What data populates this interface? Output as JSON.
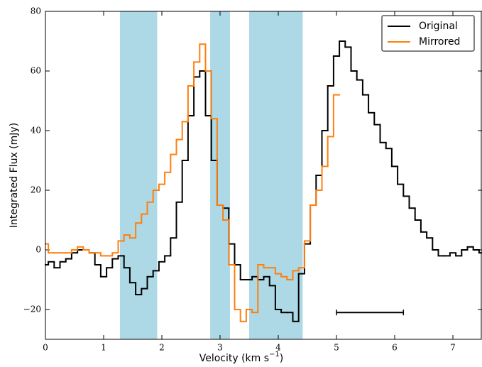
{
  "chart_data": {
    "type": "step",
    "xlabel": {
      "text": "Velocity (km s",
      "sup": "−1",
      "tail": ")"
    },
    "ylabel": "Integrated Flux (mJy)",
    "xlim": [
      0,
      7.5
    ],
    "ylim": [
      -30,
      80
    ],
    "xticks": [
      0,
      1,
      2,
      3,
      4,
      5,
      6,
      7
    ],
    "yticks": [
      {
        "value": -20,
        "label": "−20"
      },
      0,
      20,
      40,
      60,
      80
    ],
    "legend": "upper right",
    "shaded_bands": {
      "color": "#add8e6",
      "ranges": [
        [
          1.28,
          1.92
        ],
        [
          2.83,
          3.17
        ],
        [
          3.5,
          4.42
        ]
      ]
    },
    "resolution_bar": {
      "x": [
        5.0,
        6.15
      ],
      "y": -21,
      "color": "#000000"
    },
    "series": [
      {
        "name": "Original",
        "color": "#000000",
        "x": [
          0,
          0.1,
          0.2,
          0.3,
          0.4,
          0.5,
          0.6,
          0.7,
          0.8,
          0.9,
          1.0,
          1.1,
          1.2,
          1.3,
          1.4,
          1.5,
          1.6,
          1.7,
          1.8,
          1.9,
          2.0,
          2.1,
          2.2,
          2.3,
          2.4,
          2.5,
          2.6,
          2.7,
          2.8,
          2.9,
          3.0,
          3.1,
          3.2,
          3.3,
          3.4,
          3.5,
          3.6,
          3.7,
          3.8,
          3.9,
          4.0,
          4.1,
          4.2,
          4.3,
          4.4,
          4.5,
          4.6,
          4.7,
          4.8,
          4.9,
          5.0,
          5.1,
          5.2,
          5.3,
          5.4,
          5.5,
          5.6,
          5.7,
          5.8,
          5.9,
          6.0,
          6.1,
          6.2,
          6.3,
          6.4,
          6.5,
          6.6,
          6.7,
          6.8,
          6.9,
          7.0,
          7.1,
          7.2,
          7.3,
          7.4,
          7.5
        ],
        "values": [
          -5,
          -4,
          -6,
          -4,
          -3,
          -1,
          0,
          0,
          -1,
          -5,
          -9,
          -6,
          -3,
          -2,
          -6,
          -11,
          -15,
          -13,
          -9,
          -7,
          -4,
          -2,
          4,
          16,
          30,
          45,
          58,
          60,
          45,
          30,
          15,
          14,
          2,
          -5,
          -10,
          -10,
          -9,
          -10,
          -9,
          -12,
          -20,
          -21,
          -21,
          -24,
          -8,
          2,
          15,
          25,
          40,
          55,
          65,
          70,
          68,
          60,
          57,
          52,
          46,
          42,
          36,
          34,
          28,
          22,
          18,
          14,
          10,
          6,
          4,
          0,
          -2,
          -2,
          -1,
          -2,
          0,
          1,
          0,
          -1
        ]
      },
      {
        "name": "Mirrored",
        "color": "#ff7f0e",
        "x": [
          0,
          0.1,
          0.2,
          0.3,
          0.4,
          0.5,
          0.6,
          0.7,
          0.8,
          0.9,
          1.0,
          1.1,
          1.2,
          1.3,
          1.4,
          1.5,
          1.6,
          1.7,
          1.8,
          1.9,
          2.0,
          2.1,
          2.2,
          2.3,
          2.4,
          2.5,
          2.6,
          2.7,
          2.8,
          2.9,
          3.0,
          3.1,
          3.2,
          3.3,
          3.4,
          3.5,
          3.6,
          3.7,
          3.8,
          3.9,
          4.0,
          4.1,
          4.2,
          4.3,
          4.4,
          4.5,
          4.6,
          4.7,
          4.8,
          4.9,
          5.0
        ],
        "values": [
          2,
          -1,
          -1,
          -1,
          -1,
          0,
          1,
          0,
          -1,
          -1,
          -2,
          -2,
          -1,
          3,
          5,
          4,
          9,
          12,
          16,
          20,
          22,
          26,
          32,
          37,
          43,
          55,
          63,
          69,
          60,
          44,
          15,
          10,
          -5,
          -20,
          -24,
          -20,
          -21,
          -5,
          -6,
          -6,
          -8,
          -9,
          -10,
          -7,
          -6,
          3,
          15,
          20,
          28,
          38,
          52
        ]
      }
    ]
  }
}
